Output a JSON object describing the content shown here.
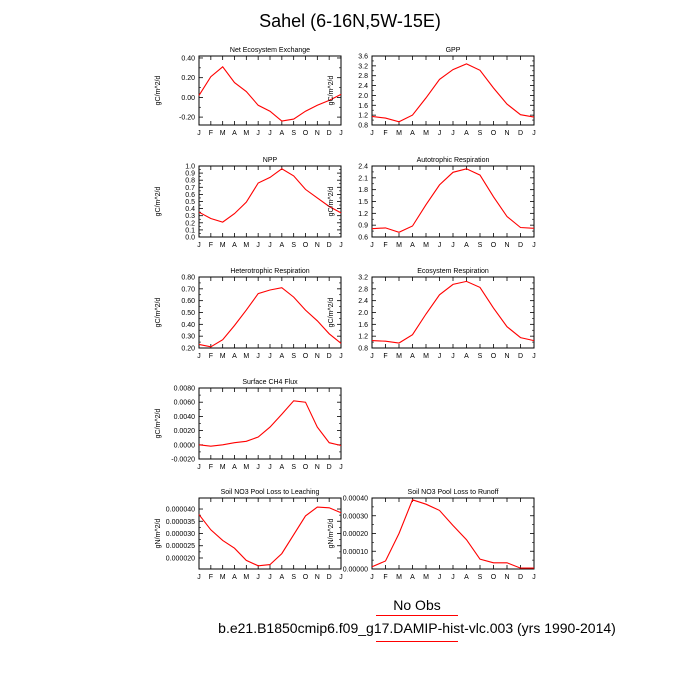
{
  "title": "Sahel (6-16N,5W-15E)",
  "legend": {
    "obs_label": "No Obs",
    "case_label": "b.e21.B1850cmip6.f09_g17.DAMIP-hist-vlc.003 (yrs 1990-2014)",
    "line_color": "#ff0000"
  },
  "line_color": "#ff0000",
  "chart_data": [
    {
      "type": "line",
      "title": "Net Ecosystem Exchange",
      "ylabel": "gC/m^2/d",
      "categories": [
        "J",
        "F",
        "M",
        "A",
        "M",
        "J",
        "J",
        "A",
        "S",
        "O",
        "N",
        "D",
        "J"
      ],
      "ylim": [
        -0.28,
        0.42
      ],
      "yticks": [
        "0.40",
        "0.20",
        "0.00",
        "-0.20"
      ],
      "ytick_values": [
        0.4,
        0.2,
        0.0,
        -0.2
      ],
      "values": [
        0.02,
        0.21,
        0.31,
        0.15,
        0.06,
        -0.08,
        -0.14,
        -0.24,
        -0.22,
        -0.14,
        -0.08,
        -0.03,
        0.03
      ]
    },
    {
      "type": "line",
      "title": "GPP",
      "ylabel": "gC/m^2/d",
      "categories": [
        "J",
        "F",
        "M",
        "A",
        "M",
        "J",
        "J",
        "A",
        "S",
        "O",
        "N",
        "D",
        "J"
      ],
      "ylim": [
        0.8,
        3.6
      ],
      "yticks": [
        "3.6",
        "3.2",
        "2.8",
        "2.4",
        "2.0",
        "1.6",
        "1.2",
        "0.8"
      ],
      "ytick_values": [
        3.6,
        3.2,
        2.8,
        2.4,
        2.0,
        1.6,
        1.2,
        0.8
      ],
      "values": [
        1.15,
        1.08,
        0.93,
        1.2,
        1.9,
        2.65,
        3.05,
        3.28,
        3.02,
        2.3,
        1.65,
        1.22,
        1.12
      ]
    },
    {
      "type": "line",
      "title": "NPP",
      "ylabel": "gC/m^2/d",
      "categories": [
        "J",
        "F",
        "M",
        "A",
        "M",
        "J",
        "J",
        "A",
        "S",
        "O",
        "N",
        "D",
        "J"
      ],
      "ylim": [
        0.0,
        1.0
      ],
      "yticks": [
        "1.0",
        "0.9",
        "0.8",
        "0.7",
        "0.6",
        "0.5",
        "0.4",
        "0.3",
        "0.2",
        "0.1",
        "0.0"
      ],
      "ytick_values": [
        1.0,
        0.9,
        0.8,
        0.7,
        0.6,
        0.5,
        0.4,
        0.3,
        0.2,
        0.1,
        0.0
      ],
      "values": [
        0.35,
        0.26,
        0.21,
        0.33,
        0.49,
        0.76,
        0.84,
        0.96,
        0.86,
        0.67,
        0.55,
        0.43,
        0.34
      ]
    },
    {
      "type": "line",
      "title": "Autotrophic Respiration",
      "ylabel": "gC/m^2/d",
      "categories": [
        "J",
        "F",
        "M",
        "A",
        "M",
        "J",
        "J",
        "A",
        "S",
        "O",
        "N",
        "D",
        "J"
      ],
      "ylim": [
        0.6,
        2.4
      ],
      "yticks": [
        "2.4",
        "2.1",
        "1.8",
        "1.5",
        "1.2",
        "0.9",
        "0.6"
      ],
      "ytick_values": [
        2.4,
        2.1,
        1.8,
        1.5,
        1.2,
        0.9,
        0.6
      ],
      "values": [
        0.81,
        0.83,
        0.72,
        0.88,
        1.42,
        1.92,
        2.24,
        2.33,
        2.17,
        1.62,
        1.12,
        0.84,
        0.82
      ]
    },
    {
      "type": "line",
      "title": "Heterotrophic Respiration",
      "ylabel": "gC/m^2/d",
      "categories": [
        "J",
        "F",
        "M",
        "A",
        "M",
        "J",
        "J",
        "A",
        "S",
        "O",
        "N",
        "D",
        "J"
      ],
      "ylim": [
        0.2,
        0.8
      ],
      "yticks": [
        "0.80",
        "0.70",
        "0.60",
        "0.50",
        "0.40",
        "0.30",
        "0.20"
      ],
      "ytick_values": [
        0.8,
        0.7,
        0.6,
        0.5,
        0.4,
        0.3,
        0.2
      ],
      "values": [
        0.23,
        0.21,
        0.27,
        0.39,
        0.52,
        0.66,
        0.69,
        0.71,
        0.63,
        0.52,
        0.43,
        0.32,
        0.24
      ]
    },
    {
      "type": "line",
      "title": "Ecosystem Respiration",
      "ylabel": "gC/m^2/d",
      "categories": [
        "J",
        "F",
        "M",
        "A",
        "M",
        "J",
        "J",
        "A",
        "S",
        "O",
        "N",
        "D",
        "J"
      ],
      "ylim": [
        0.8,
        3.2
      ],
      "yticks": [
        "3.2",
        "2.8",
        "2.4",
        "2.0",
        "1.6",
        "1.2",
        "0.8"
      ],
      "ytick_values": [
        3.2,
        2.8,
        2.4,
        2.0,
        1.6,
        1.2,
        0.8
      ],
      "values": [
        1.05,
        1.03,
        0.97,
        1.25,
        1.95,
        2.6,
        2.95,
        3.05,
        2.85,
        2.15,
        1.52,
        1.15,
        1.05
      ]
    },
    {
      "type": "line",
      "title": "Surface CH4 Flux",
      "ylabel": "gC/m^2/d",
      "categories": [
        "J",
        "F",
        "M",
        "A",
        "M",
        "J",
        "J",
        "A",
        "S",
        "O",
        "N",
        "D",
        "J"
      ],
      "ylim": [
        -0.002,
        0.008
      ],
      "yticks": [
        "0.0080",
        "0.0060",
        "0.0040",
        "0.0020",
        "0.0000",
        "-0.0020"
      ],
      "ytick_values": [
        0.008,
        0.006,
        0.004,
        0.002,
        0.0,
        -0.002
      ],
      "values": [
        0.0,
        -0.0002,
        0.0,
        0.0003,
        0.0005,
        0.0011,
        0.0025,
        0.0043,
        0.0062,
        0.006,
        0.0025,
        0.0003,
        -0.0001
      ]
    },
    {
      "type": "line",
      "title": "Soil NO3 Pool Loss to Leaching",
      "ylabel": "gN/m^2/d",
      "categories": [
        "J",
        "F",
        "M",
        "A",
        "M",
        "J",
        "J",
        "A",
        "S",
        "O",
        "N",
        "D",
        "J"
      ],
      "ylim": [
        1.55e-05,
        4.45e-05
      ],
      "yticks": [
        "0.000040",
        "0.000035",
        "0.000030",
        "0.000025",
        "0.000020"
      ],
      "ytick_values": [
        4e-05,
        3.5e-05,
        3e-05,
        2.5e-05,
        2e-05
      ],
      "values": [
        3.77e-05,
        3.15e-05,
        2.72e-05,
        2.4e-05,
        1.9e-05,
        1.68e-05,
        1.73e-05,
        2.18e-05,
        2.95e-05,
        3.72e-05,
        4.08e-05,
        4.05e-05,
        3.85e-05
      ]
    },
    {
      "type": "line",
      "title": "Soil NO3 Pool Loss to Runoff",
      "ylabel": "gN/m^2/d",
      "categories": [
        "J",
        "F",
        "M",
        "A",
        "M",
        "J",
        "J",
        "A",
        "S",
        "O",
        "N",
        "D",
        "J"
      ],
      "ylim": [
        0.0,
        0.0004
      ],
      "yticks": [
        "0.00040",
        "0.00030",
        "0.00020",
        "0.00010",
        "0.00000"
      ],
      "ytick_values": [
        0.0004,
        0.0003,
        0.0002,
        0.0001,
        0.0
      ],
      "values": [
        1.25e-05,
        4.5e-05,
        0.0002,
        0.00039,
        0.000365,
        0.00033,
        0.000245,
        0.000165,
        5.5e-05,
        3.5e-05,
        3.5e-05,
        5e-06,
        5e-06
      ]
    }
  ]
}
